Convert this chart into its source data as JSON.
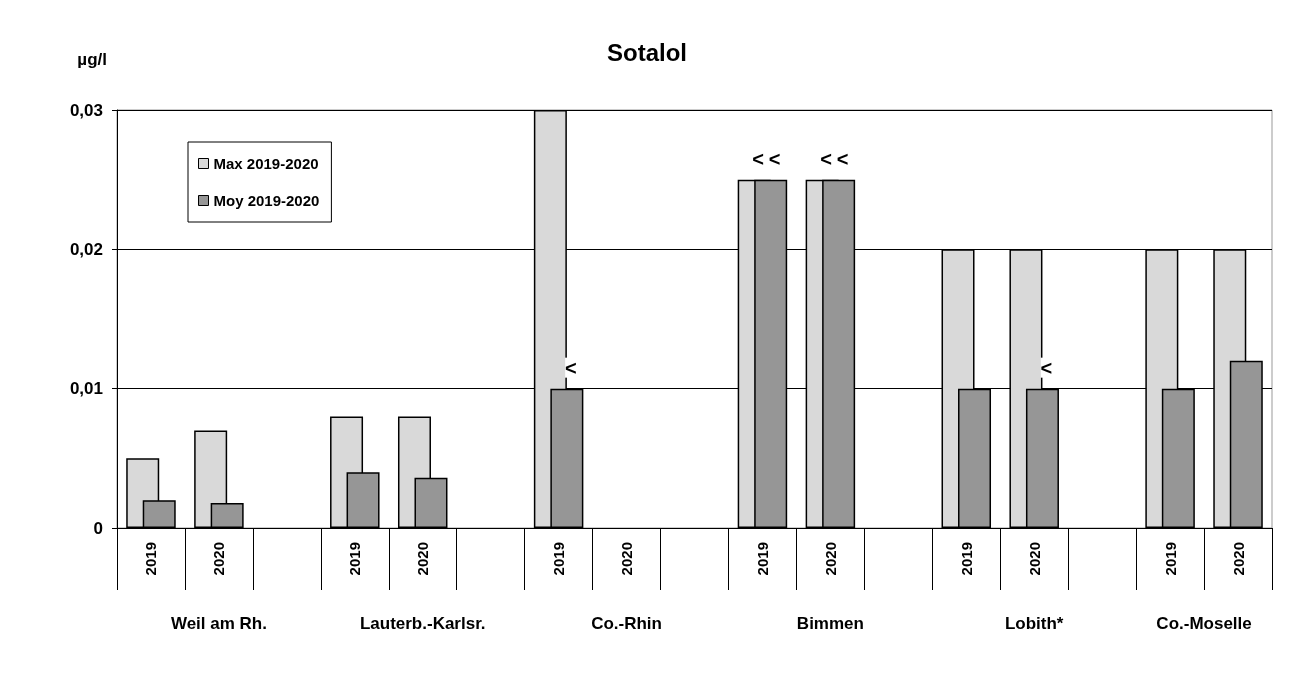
{
  "chart_data": {
    "type": "bar",
    "title": "Sotalol",
    "ylabel": "µg/l",
    "categories": [
      "2019",
      "2020",
      null,
      "2019",
      "2020",
      null,
      "2019",
      "2020",
      null,
      "2019",
      "2020",
      null,
      "2019",
      "2020",
      null,
      "2019",
      "2020"
    ],
    "annotations": [
      "Weil am Rh.",
      "Lauterb.-Karlsr.",
      "Co.-Rhin",
      "Bimmen",
      "Lobith*",
      "Co.-Moselle"
    ],
    "series": [
      {
        "name": "Max 2019-2020",
        "color": "#d9d9d9",
        "values": [
          0.005,
          0.007,
          null,
          0.008,
          0.008,
          null,
          0.03,
          null,
          null,
          0.025,
          0.025,
          null,
          0.02,
          0.02,
          null,
          0.02,
          0.02
        ],
        "value_labels": [
          null,
          null,
          null,
          null,
          null,
          null,
          null,
          null,
          null,
          "<",
          "<",
          null,
          null,
          null,
          null,
          null,
          null
        ]
      },
      {
        "name": "Moy 2019-2020",
        "color": "#969696",
        "values": [
          0.002,
          0.0018,
          null,
          0.004,
          0.0036,
          null,
          0.01,
          null,
          null,
          0.025,
          0.025,
          null,
          0.01,
          0.01,
          null,
          0.01,
          0.012
        ],
        "value_labels": [
          null,
          null,
          null,
          null,
          null,
          null,
          "<",
          null,
          null,
          "<",
          "<",
          null,
          null,
          "<",
          null,
          null,
          null
        ]
      }
    ],
    "ylim": [
      0,
      0.03
    ],
    "yticks": [
      {
        "value": 0,
        "label": "0"
      },
      {
        "value": 0.01,
        "label": "0,01"
      },
      {
        "value": 0.02,
        "label": "0,02"
      },
      {
        "value": 0.03,
        "label": "0,03"
      }
    ],
    "grid": "y",
    "legend": "top left"
  }
}
